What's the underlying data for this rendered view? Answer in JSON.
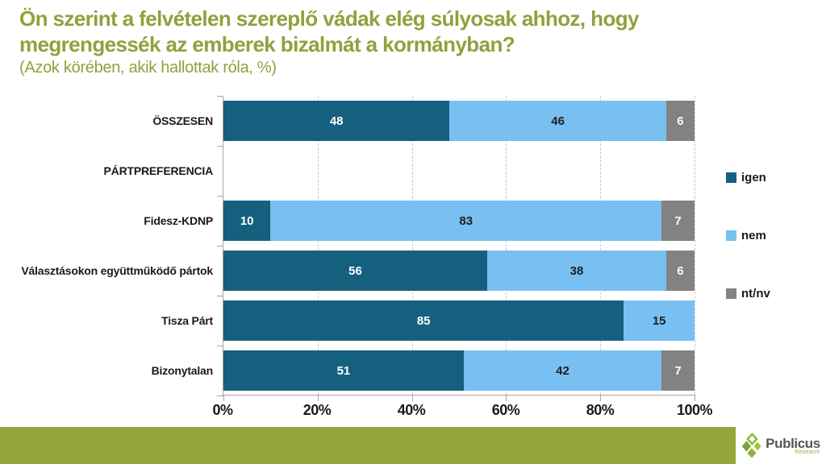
{
  "header": {
    "title": "Ön szerint a felvételen szereplő vádak elég súlyosak ahhoz, hogy megrengessék az emberek bizalmát a kormányban?",
    "subtitle": "(Azok körében, akik hallottak róla, %)"
  },
  "chart_data": {
    "type": "bar",
    "orientation": "horizontal_stacked",
    "title": "Ön szerint a felvételen szereplő vádak elég súlyosak ahhoz, hogy megrengessék az emberek bizalmát a kormányban?",
    "subtitle": "(Azok körében, akik hallottak róla, %)",
    "categories": [
      "ÖSSZESEN",
      "PÁRTPREFERENCIA",
      "Fidesz-KDNP",
      "Választásokon együttműködő pártok",
      "Tisza Párt",
      "Bizonytalan"
    ],
    "series": [
      {
        "name": "igen",
        "color": "#16607F",
        "value_color": "#FFFFFF",
        "values": [
          48,
          null,
          10,
          56,
          85,
          51
        ]
      },
      {
        "name": "nem",
        "color": "#78BFF2",
        "value_color": "#1F1F1F",
        "values": [
          46,
          null,
          83,
          38,
          15,
          42
        ]
      },
      {
        "name": "nt/nv",
        "color": "#828282",
        "value_color": "#FFFFFF",
        "values": [
          6,
          null,
          7,
          6,
          null,
          7
        ]
      }
    ],
    "xlim": [
      0,
      100
    ],
    "x_ticks": [
      "0%",
      "20%",
      "40%",
      "60%",
      "80%",
      "100%"
    ],
    "grid": "dashed-vertical",
    "legend_position": "right"
  },
  "footer": {
    "brand": "Publicus",
    "brand_sub": "Research"
  },
  "colors": {
    "title_green": "#8EA23C",
    "footer_band": "#96A43C",
    "axis_gray": "#A6A6A6",
    "gridline_gray": "#C9C9C9",
    "igen": "#16607F",
    "nem": "#78BFF2",
    "nt_nv": "#828282"
  }
}
